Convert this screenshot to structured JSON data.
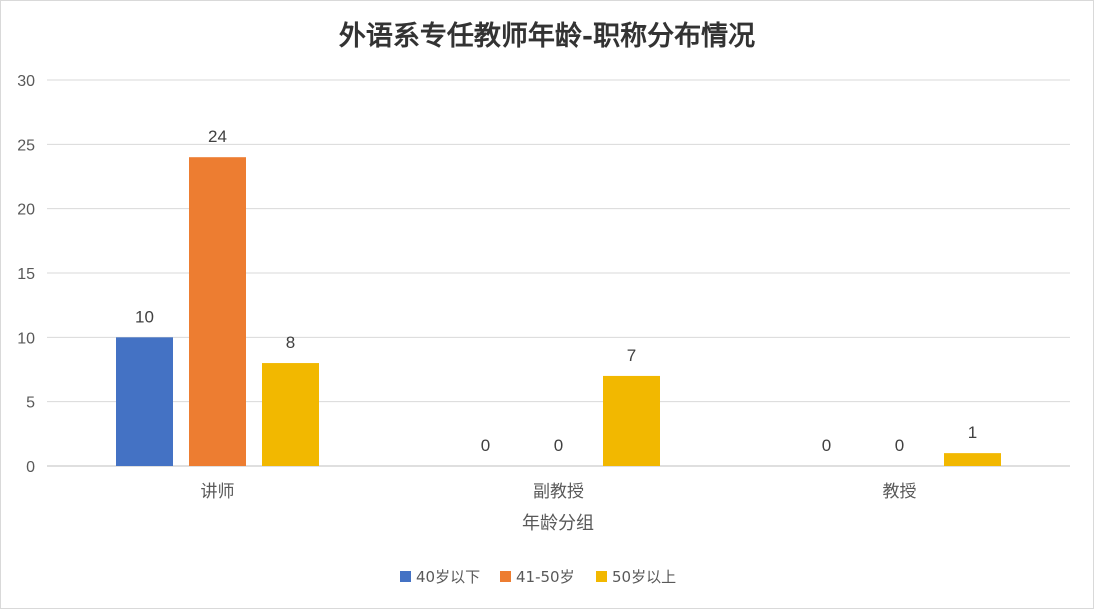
{
  "chart_data": {
    "type": "bar",
    "title": "外语系专任教师年龄-职称分布情况",
    "xlabel": "年龄分组",
    "ylabel": "",
    "categories": [
      "讲师",
      "副教授",
      "教授"
    ],
    "series": [
      {
        "name": "40岁以下",
        "values": [
          10,
          0,
          0
        ],
        "color": "#4472c4"
      },
      {
        "name": "41-50岁",
        "values": [
          24,
          0,
          0
        ],
        "color": "#ed7d31"
      },
      {
        "name": "50岁以上",
        "values": [
          8,
          7,
          1
        ],
        "color": "#f2b800"
      }
    ],
    "ylim": [
      0,
      30
    ],
    "yticks": [
      0,
      5,
      10,
      15,
      20,
      25,
      30
    ],
    "grid": true,
    "legend": "bottom",
    "data_labels": true
  }
}
